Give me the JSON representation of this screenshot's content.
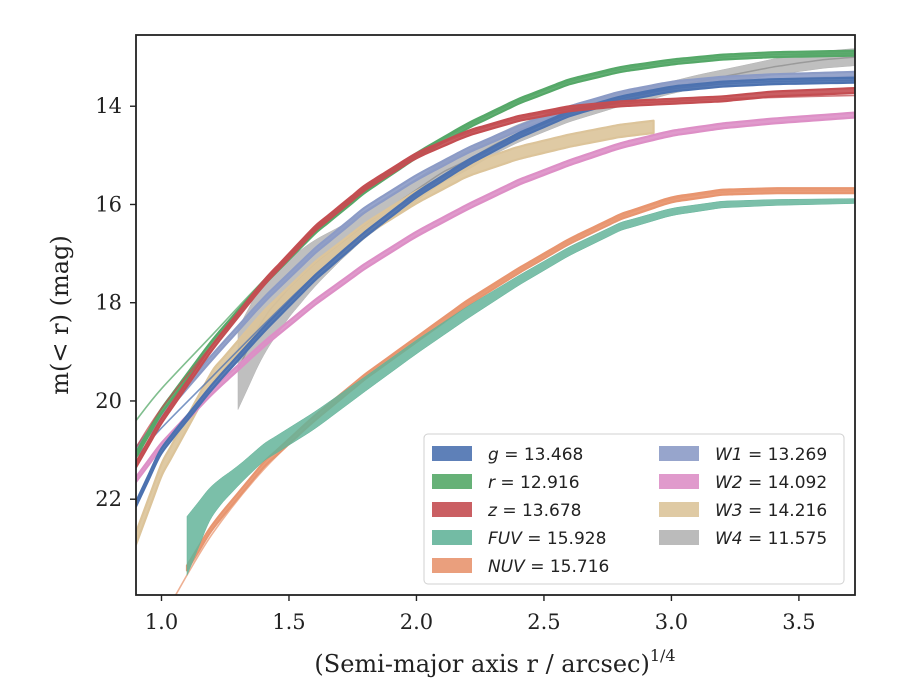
{
  "chart_data": {
    "type": "line",
    "xlabel": "(Semi-major axis r / arcsec)",
    "xlabel_sup": "1/4",
    "ylabel": "m(< r) (mag)",
    "xlim": [
      0.9,
      3.72
    ],
    "ylim": [
      23.95,
      12.55
    ],
    "y_inverted": true,
    "xticks": [
      1.0,
      1.5,
      2.0,
      2.5,
      3.0,
      3.5
    ],
    "xtick_labels": [
      "1.0",
      "1.5",
      "2.0",
      "2.5",
      "3.0",
      "3.5"
    ],
    "yticks": [
      14,
      16,
      18,
      20,
      22
    ],
    "ytick_labels": [
      "14",
      "16",
      "18",
      "20",
      "22"
    ],
    "grid": false,
    "legend_position": "lower-right",
    "legend_columns": 2,
    "series": [
      {
        "name": "g = 13.468",
        "label": "g",
        "magnitude": "13.468",
        "color": "#4c72b0",
        "kind": "band",
        "x": [
          0.9,
          1.0,
          1.2,
          1.4,
          1.6,
          1.8,
          2.0,
          2.2,
          2.4,
          2.6,
          2.8,
          3.0,
          3.2,
          3.4,
          3.72
        ],
        "y": [
          22.1,
          21.0,
          19.7,
          18.55,
          17.5,
          16.6,
          15.8,
          15.15,
          14.6,
          14.15,
          13.85,
          13.65,
          13.55,
          13.5,
          13.47
        ],
        "width": 0.1,
        "fit": {
          "x": [
            0.9,
            1.0,
            1.2,
            1.4,
            1.6,
            1.8,
            2.0,
            2.2,
            2.4,
            2.6,
            2.8,
            3.0,
            3.2,
            3.4,
            3.72
          ],
          "y": [
            21.15,
            20.55,
            19.5,
            18.45,
            17.45,
            16.55,
            15.8,
            15.15,
            14.6,
            14.15,
            13.85,
            13.65,
            13.55,
            13.5,
            13.47
          ]
        }
      },
      {
        "name": "r = 12.916",
        "label": "r",
        "magnitude": "12.916",
        "color": "#55a868",
        "kind": "band",
        "x": [
          0.9,
          1.0,
          1.2,
          1.4,
          1.6,
          1.8,
          2.0,
          2.2,
          2.4,
          2.6,
          2.8,
          3.0,
          3.2,
          3.4,
          3.72
        ],
        "y": [
          21.1,
          20.2,
          18.8,
          17.6,
          16.55,
          15.7,
          15.0,
          14.4,
          13.9,
          13.5,
          13.25,
          13.1,
          13.0,
          12.95,
          12.92
        ],
        "width": 0.1,
        "fit": {
          "x": [
            0.9,
            1.0,
            1.2,
            1.4,
            1.6,
            1.8,
            2.0,
            2.2,
            2.4,
            2.6,
            2.8,
            3.0,
            3.2,
            3.4,
            3.72
          ],
          "y": [
            20.4,
            19.75,
            18.65,
            17.55,
            16.55,
            15.7,
            15.0,
            14.4,
            13.9,
            13.5,
            13.25,
            13.1,
            13.0,
            12.95,
            12.92
          ]
        }
      },
      {
        "name": "z = 13.678",
        "label": "z",
        "magnitude": "13.678",
        "color": "#c44e52",
        "kind": "band",
        "x": [
          0.9,
          1.0,
          1.2,
          1.4,
          1.6,
          1.8,
          2.0,
          2.2,
          2.4,
          2.6,
          2.8,
          3.0,
          3.2,
          3.4,
          3.72
        ],
        "y": [
          21.3,
          20.4,
          18.9,
          17.6,
          16.5,
          15.65,
          15.0,
          14.55,
          14.25,
          14.05,
          13.95,
          13.9,
          13.85,
          13.75,
          13.68
        ],
        "width": 0.1,
        "fit": {
          "x": [
            0.9,
            1.0,
            1.2,
            1.4,
            1.6,
            1.8,
            2.0,
            2.2,
            2.4,
            2.6,
            2.8,
            3.0,
            3.2,
            3.4,
            3.72
          ],
          "y": [
            20.95,
            20.15,
            18.85,
            17.6,
            16.5,
            15.65,
            15.0,
            14.55,
            14.25,
            14.05,
            13.95,
            13.9,
            13.85,
            13.82,
            13.78
          ]
        }
      },
      {
        "name": "FUV = 15.928",
        "label": "FUV",
        "magnitude": "15.928",
        "color": "#64b49a",
        "kind": "band",
        "x": [
          1.1,
          1.2,
          1.4,
          1.6,
          1.8,
          2.0,
          2.2,
          2.4,
          2.6,
          2.8,
          3.0,
          3.2,
          3.4,
          3.72
        ],
        "y": [
          22.95,
          22.0,
          21.05,
          20.4,
          19.65,
          18.9,
          18.2,
          17.55,
          16.95,
          16.45,
          16.15,
          16.0,
          15.96,
          15.93
        ],
        "width_x": [
          1.1,
          1.15,
          1.2,
          1.3,
          1.4,
          1.6,
          1.8,
          2.0,
          2.2,
          2.4,
          2.6,
          3.0,
          3.72
        ],
        "width_y": [
          1.2,
          0.9,
          0.6,
          0.4,
          0.35,
          0.35,
          0.3,
          0.28,
          0.25,
          0.2,
          0.18,
          0.15,
          0.1
        ]
      },
      {
        "name": "NUV = 15.716",
        "label": "NUV",
        "magnitude": "15.716",
        "color": "#e8956f",
        "kind": "band",
        "x": [
          1.1,
          1.2,
          1.4,
          1.6,
          1.8,
          2.0,
          2.2,
          2.4,
          2.6,
          2.8,
          3.0,
          3.2,
          3.4,
          3.72
        ],
        "y": [
          23.4,
          22.55,
          21.3,
          20.35,
          19.5,
          18.75,
          18.0,
          17.35,
          16.75,
          16.25,
          15.9,
          15.75,
          15.72,
          15.72
        ],
        "width": 0.1,
        "fit": {
          "x": [
            1.05,
            1.2,
            1.4,
            1.6,
            1.8,
            2.0,
            2.2,
            2.4,
            2.6,
            2.8,
            3.0,
            3.2,
            3.4,
            3.72
          ],
          "y": [
            24.0,
            22.7,
            21.4,
            20.4,
            19.5,
            18.75,
            18.0,
            17.35,
            16.75,
            16.25,
            15.9,
            15.75,
            15.72,
            15.72
          ]
        }
      },
      {
        "name": "W1 = 13.269",
        "label": "W1",
        "magnitude": "13.269",
        "color": "#8c9bc6",
        "kind": "band",
        "x": [
          0.9,
          1.0,
          1.2,
          1.4,
          1.6,
          1.8,
          2.0,
          2.2,
          2.4,
          2.6,
          2.8,
          3.0,
          3.2,
          3.4,
          3.72
        ],
        "y": [
          21.0,
          20.3,
          19.1,
          17.95,
          16.95,
          16.1,
          15.45,
          14.9,
          14.45,
          14.05,
          13.75,
          13.55,
          13.45,
          13.4,
          13.35
        ],
        "width": 0.1
      },
      {
        "name": "W2 = 14.092",
        "label": "W2",
        "magnitude": "14.092",
        "color": "#dd8fc6",
        "kind": "band",
        "x": [
          0.9,
          1.0,
          1.2,
          1.4,
          1.6,
          1.8,
          2.0,
          2.2,
          2.4,
          2.6,
          2.8,
          3.0,
          3.2,
          3.4,
          3.72
        ],
        "y": [
          21.6,
          20.9,
          19.8,
          18.85,
          18.0,
          17.25,
          16.6,
          16.05,
          15.55,
          15.15,
          14.8,
          14.55,
          14.4,
          14.3,
          14.18
        ],
        "width": 0.1
      },
      {
        "name": "W3 = 14.216",
        "label": "W3",
        "magnitude": "14.216",
        "color": "#dcc49a",
        "kind": "band",
        "x": [
          0.9,
          1.0,
          1.2,
          1.4,
          1.6,
          1.8,
          2.0,
          2.2,
          2.4,
          2.6,
          2.8,
          2.93
        ],
        "y": [
          22.8,
          21.4,
          19.5,
          18.3,
          17.3,
          16.5,
          15.85,
          15.3,
          14.95,
          14.7,
          14.5,
          14.42
        ],
        "width": 0.25
      },
      {
        "name": "W4 = 11.575",
        "label": "W4",
        "magnitude": "11.575",
        "color": "#b4b4b4",
        "kind": "band",
        "x": [
          1.3,
          1.4,
          1.5,
          1.6,
          1.7,
          1.8,
          1.9,
          2.0,
          2.1,
          2.2,
          2.3,
          2.4,
          2.5,
          2.6,
          2.7,
          2.8,
          2.9,
          3.0,
          3.1,
          3.2,
          3.3,
          3.4,
          3.5,
          3.6,
          3.72
        ],
        "y": [
          19.35,
          18.3,
          17.7,
          17.2,
          16.8,
          16.4,
          16.05,
          15.7,
          15.35,
          15.1,
          14.8,
          14.55,
          14.35,
          14.15,
          14.0,
          13.85,
          13.75,
          13.62,
          13.5,
          13.4,
          13.3,
          13.2,
          13.12,
          13.05,
          13.0
        ],
        "width_x": [
          1.3,
          1.4,
          1.5,
          1.6,
          1.7,
          1.8,
          2.0,
          2.2,
          2.5,
          2.8,
          3.0,
          3.3,
          3.5,
          3.72
        ],
        "width_y": [
          1.65,
          1.5,
          1.2,
          0.95,
          0.7,
          0.55,
          0.45,
          0.4,
          0.35,
          0.3,
          0.25,
          0.3,
          0.35,
          0.35
        ]
      }
    ]
  }
}
